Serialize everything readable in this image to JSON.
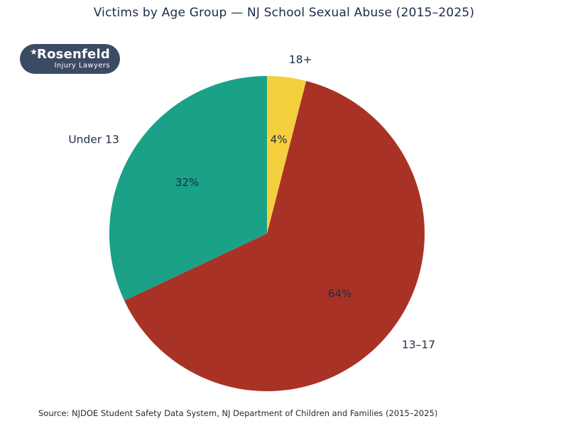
{
  "title": "Victims by Age Group — NJ School Sexual Abuse (2015–2025)",
  "logo": {
    "star": "★",
    "brand": "Rosenfeld",
    "tagline": "Injury Lawyers",
    "pill_color": "#3c4b64",
    "text_color": "#ffffff"
  },
  "source": "Source: NJDOE Student Safety Data System, NJ Department of Children and Families (2015–2025)",
  "chart_data": {
    "type": "pie",
    "title": "Victims by Age Group — NJ School Sexual Abuse (2015–2025)",
    "categories": [
      "Under 13",
      "13–17",
      "18+"
    ],
    "values": [
      32,
      64,
      4
    ],
    "percent_labels": [
      "32%",
      "64%",
      "4%"
    ],
    "colors": [
      "#1aa188",
      "#a93226",
      "#f4d03f"
    ],
    "label_color": "#1d2b45",
    "start_angle_deg": 90,
    "direction": "counterclockwise",
    "legend": "none",
    "source": "Source: NJDOE Student Safety Data System, NJ Department of Children and Families (2015–2025)"
  }
}
